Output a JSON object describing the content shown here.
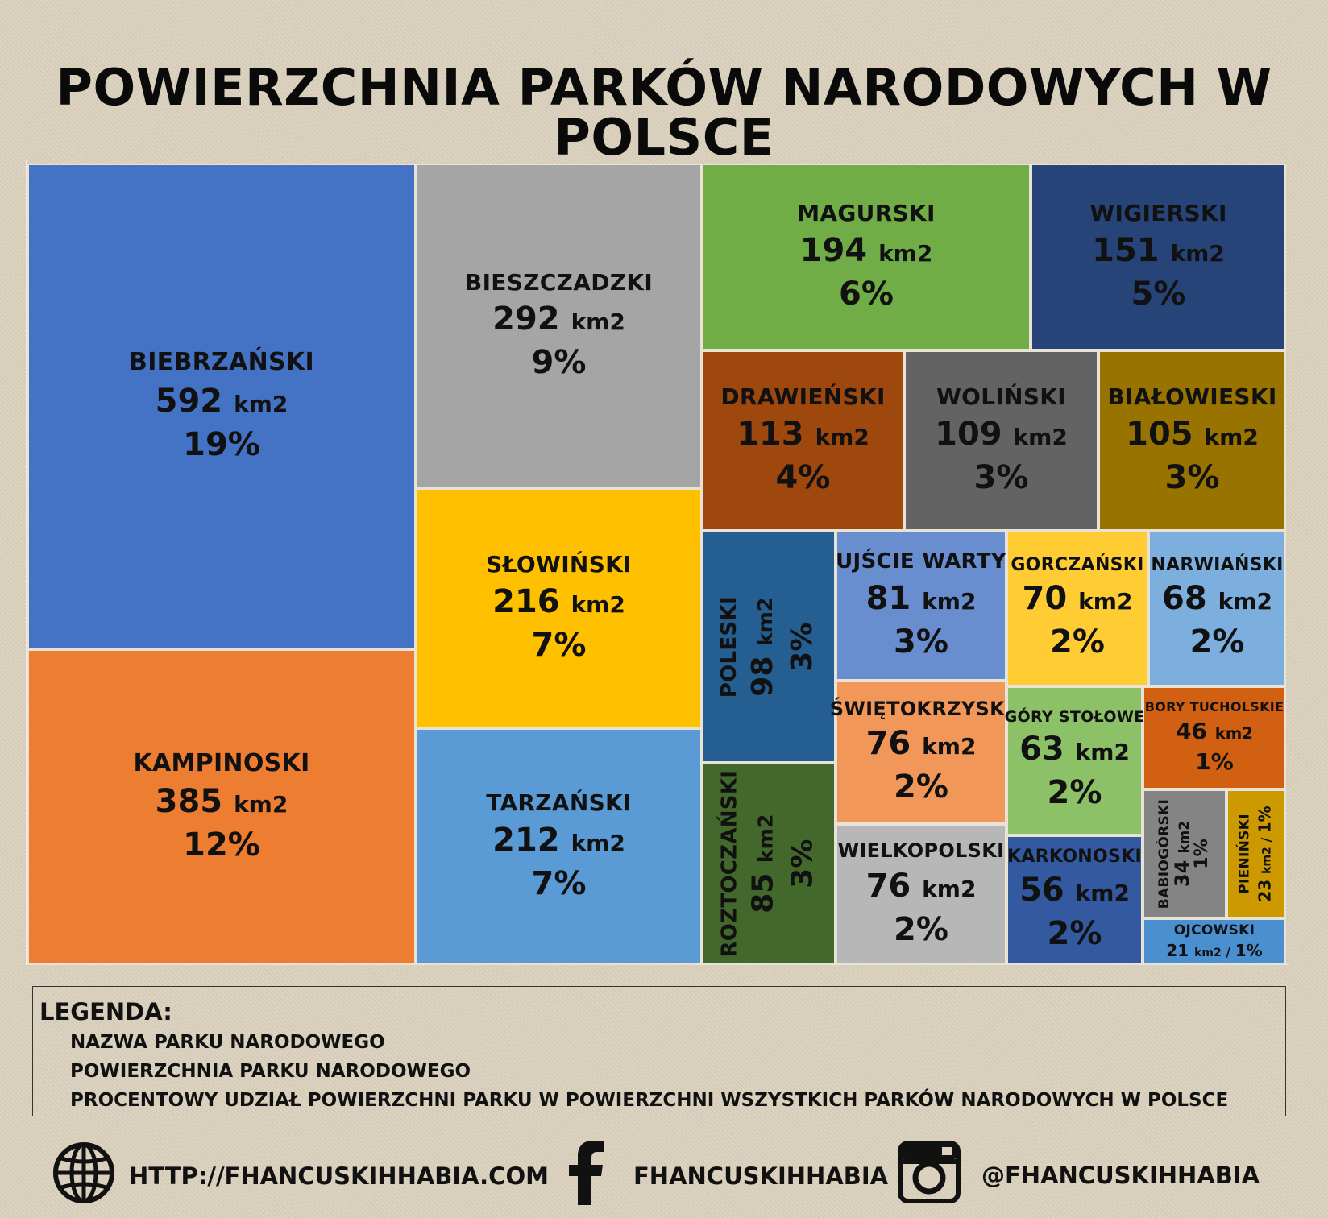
{
  "title": "POWIERZCHNIA PARKÓW NARODOWYCH W POLSCE",
  "chart_data": {
    "type": "treemap",
    "unit": "km2",
    "items": [
      {
        "name": "BIEBRZAŃSKI",
        "value": 592,
        "percent": "19%",
        "color": "#4472c4"
      },
      {
        "name": "KAMPINOSKI",
        "value": 385,
        "percent": "12%",
        "color": "#ed7d31"
      },
      {
        "name": "BIESZCZADZKI",
        "value": 292,
        "percent": "9%",
        "color": "#a5a5a5"
      },
      {
        "name": "SŁOWIŃSKI",
        "value": 216,
        "percent": "7%",
        "color": "#ffc000"
      },
      {
        "name": "TARZAŃSKI",
        "value": 212,
        "percent": "7%",
        "color": "#5b9bd5"
      },
      {
        "name": "MAGURSKI",
        "value": 194,
        "percent": "6%",
        "color": "#70ad47"
      },
      {
        "name": "WIGIERSKI",
        "value": 151,
        "percent": "5%",
        "color": "#264478"
      },
      {
        "name": "DRAWIEŃSKI",
        "value": 113,
        "percent": "4%",
        "color": "#9e480e"
      },
      {
        "name": "WOLIŃSKI",
        "value": 109,
        "percent": "3%",
        "color": "#636363"
      },
      {
        "name": "BIAŁOWIESKI",
        "value": 105,
        "percent": "3%",
        "color": "#997300"
      },
      {
        "name": "POLESKI",
        "value": 98,
        "percent": "3%",
        "color": "#255e91"
      },
      {
        "name": "ROZTOCZAŃSKI",
        "value": 85,
        "percent": "3%",
        "color": "#43682b"
      },
      {
        "name": "UJŚCIE WARTY",
        "value": 81,
        "percent": "3%",
        "color": "#698ed0"
      },
      {
        "name": "ŚWIĘTOKRZYSKI",
        "value": 76,
        "percent": "2%",
        "color": "#f1975a"
      },
      {
        "name": "WIELKOPOLSKI",
        "value": 76,
        "percent": "2%",
        "color": "#b7b7b7"
      },
      {
        "name": "GORCZAŃSKI",
        "value": 70,
        "percent": "2%",
        "color": "#ffcd33"
      },
      {
        "name": "NARWIAŃSKI",
        "value": 68,
        "percent": "2%",
        "color": "#7cafdd"
      },
      {
        "name": "GÓRY STOŁOWE",
        "value": 63,
        "percent": "2%",
        "color": "#8cc168"
      },
      {
        "name": "KARKONOSKI",
        "value": 56,
        "percent": "2%",
        "color": "#335aa1"
      },
      {
        "name": "BORY TUCHOLSKIE",
        "value": 46,
        "percent": "1%",
        "color": "#d26012"
      },
      {
        "name": "BABIOGÓRSKI",
        "value": 34,
        "percent": "1%",
        "color": "#848484"
      },
      {
        "name": "PIENIŃSKI",
        "value": 23,
        "percent": "1%",
        "color": "#cc9a00"
      },
      {
        "name": "OJCOWSKI",
        "value": 21,
        "percent": "1%",
        "color": "#4a90d0"
      }
    ]
  },
  "legend": {
    "title": "LEGENDA:",
    "items": [
      "NAZWA PARKU NARODOWEGO",
      "POWIERZCHNIA PARKU NARODOWEGO",
      "PROCENTOWY UDZIAŁ POWIERZCHNI PARKU W POWIERZCHNI WSZYSTKICH PARKÓW NARODOWYCH W POLSCE"
    ]
  },
  "footer": {
    "website": "HTTP://FHANCUSKIHHABIA.COM",
    "facebook": "FHANCUSKIHHABIA",
    "instagram": "@FHANCUSKIHHABIA",
    "icons": [
      "globe-icon",
      "facebook-icon",
      "instagram-icon"
    ]
  }
}
